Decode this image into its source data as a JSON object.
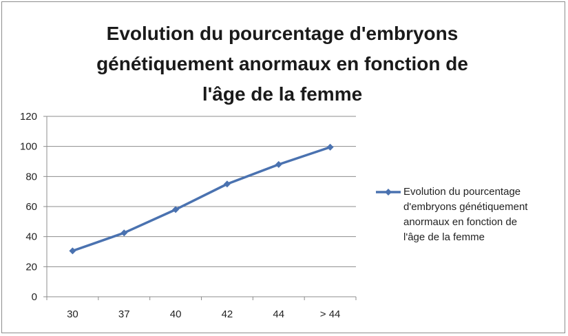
{
  "chart_data": {
    "type": "line",
    "title_lines": [
      "Evolution du pourcentage d'embryons",
      "génétiquement anormaux en fonction de",
      "l'âge de la femme"
    ],
    "categories": [
      "30",
      "37",
      "40",
      "42",
      "44",
      "> 44"
    ],
    "series": [
      {
        "name": "Evolution du pourcentage d'embryons génétiquement anormaux en fonction de l'âge de la femme",
        "values": [
          30.5,
          42.5,
          58,
          75,
          88,
          99.5
        ],
        "color": "#4a72b0"
      }
    ],
    "ylim": [
      0,
      120
    ],
    "yticks": [
      0,
      20,
      40,
      60,
      80,
      100,
      120
    ],
    "grid": true,
    "legend_position": "right"
  },
  "legend_lines": [
    "Evolution du pourcentage",
    "d'embryons génétiquement",
    "anormaux en fonction de",
    "l'âge de la femme"
  ]
}
